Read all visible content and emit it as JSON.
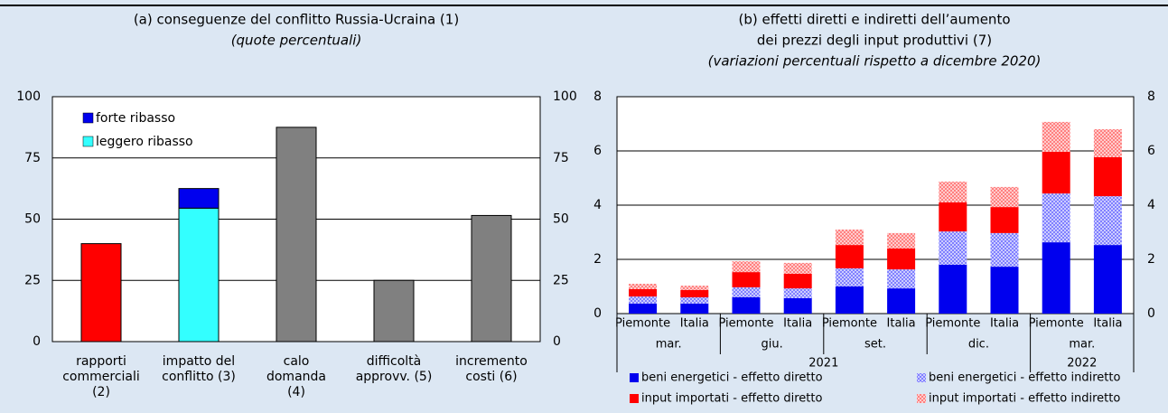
{
  "chart_data": [
    {
      "type": "bar",
      "title": "(a) conseguenze del conflitto Russia-Ucraina (1)",
      "subtitle": "(quote percentuali)",
      "categories": [
        [
          "rapporti",
          "commerciali",
          "(2)"
        ],
        [
          "impatto del",
          "conflitto (3)"
        ],
        [
          "calo",
          "domanda",
          "(4)"
        ],
        [
          "difficoltà",
          "approvv. (5)"
        ],
        [
          "incremento",
          "costi (6)"
        ]
      ],
      "values": [
        40,
        null,
        87.5,
        25,
        51.5
      ],
      "colors": [
        "#ff0000",
        null,
        "#808080",
        "#808080",
        "#808080"
      ],
      "series": [
        {
          "name": "forte ribasso",
          "color": "#0000ee",
          "values": [
            null,
            8,
            null,
            null,
            null
          ]
        },
        {
          "name": "leggero ribasso",
          "color": "#33ffff",
          "values": [
            null,
            54.5,
            null,
            null,
            null
          ]
        }
      ],
      "ylim": [
        0,
        100
      ],
      "yticks": [
        0,
        25,
        50,
        75,
        100
      ],
      "y2lim": [
        0,
        100
      ],
      "y2ticks": [
        0,
        25,
        50,
        75,
        100
      ],
      "grid": true
    },
    {
      "type": "stacked_bar",
      "title": [
        "(b) effetti diretti e indiretti dell’aumento",
        "dei prezzi degli input produttivi (7)"
      ],
      "subtitle": "(variazioni percentuali rispetto a dicembre 2020)",
      "years": [
        {
          "label": "2021",
          "groups": [
            {
              "label": "mar.",
              "categories": [
                "Piemonte",
                "Italia"
              ]
            },
            {
              "label": "giu.",
              "categories": [
                "Piemonte",
                "Italia"
              ]
            },
            {
              "label": "set.",
              "categories": [
                "Piemonte",
                "Italia"
              ]
            },
            {
              "label": "dic.",
              "categories": [
                "Piemonte",
                "Italia"
              ]
            }
          ]
        },
        {
          "label": "2022",
          "groups": [
            {
              "label": "mar.",
              "categories": [
                "Piemonte",
                "Italia"
              ]
            }
          ]
        }
      ],
      "series": [
        {
          "name": "beni energetici - effetto diretto",
          "color": "#0000ee",
          "pattern": false,
          "values": [
            0.37,
            0.37,
            0.6,
            0.57,
            1.0,
            0.93,
            1.8,
            1.73,
            2.63,
            2.53
          ]
        },
        {
          "name": "beni energetici - effetto indiretto",
          "color": "#8080ff",
          "pattern": true,
          "values": [
            0.26,
            0.23,
            0.37,
            0.36,
            0.67,
            0.7,
            1.23,
            1.24,
            1.8,
            1.8
          ]
        },
        {
          "name": "input importati - effetto diretto",
          "color": "#ff0000",
          "pattern": false,
          "values": [
            0.27,
            0.27,
            0.56,
            0.54,
            0.86,
            0.77,
            1.07,
            0.96,
            1.54,
            1.44
          ]
        },
        {
          "name": "input importati - effetto indiretto",
          "color": "#ff8080",
          "pattern": true,
          "values": [
            0.2,
            0.16,
            0.4,
            0.4,
            0.57,
            0.57,
            0.77,
            0.74,
            1.1,
            1.03
          ]
        }
      ],
      "ylim": [
        0,
        8
      ],
      "yticks": [
        0,
        2,
        4,
        6,
        8
      ],
      "y2lim": [
        0,
        8
      ],
      "y2ticks": [
        0,
        2,
        4,
        6,
        8
      ],
      "grid": true
    }
  ]
}
